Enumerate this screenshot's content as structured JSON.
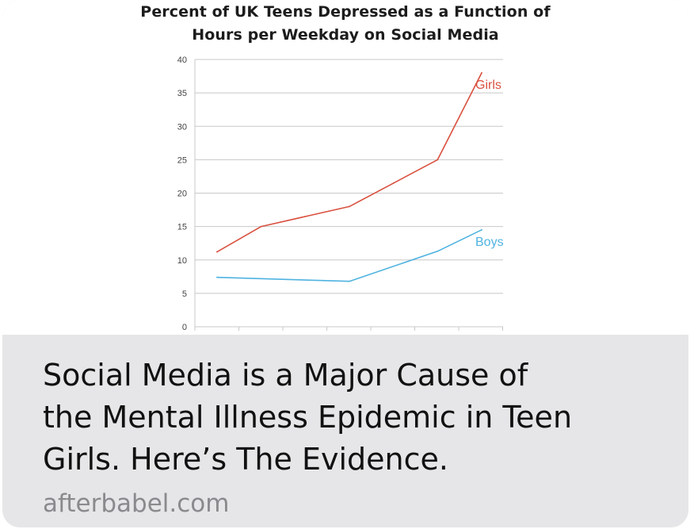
{
  "link_preview": {
    "title_lines": [
      "Social Media is a Major Cause of",
      "the Mental Illness Epidemic in Teen",
      "Girls. Here’s The Evidence."
    ],
    "domain": "afterbabel.com"
  },
  "colors": {
    "girls": "#d9503f",
    "boys": "#4fb3e0",
    "card_background": "#e6e6e8"
  },
  "chart_data": {
    "type": "line",
    "title_lines": [
      "Percent of UK Teens Depressed as a Function of",
      "Hours per Weekday on Social Media"
    ],
    "xlabel": "",
    "ylabel": "",
    "ylim": [
      0,
      40
    ],
    "yticks": [
      "0",
      "5",
      "10",
      "15",
      "20",
      "25",
      "30",
      "35",
      "40"
    ],
    "grid": true,
    "series": [
      {
        "name": "Girls",
        "color": "#d9503f",
        "x": [
          0,
          1,
          2,
          3,
          4,
          5,
          6
        ],
        "values": [
          11.2,
          15.0,
          16.5,
          18.0,
          21.5,
          25.0,
          38.0
        ]
      },
      {
        "name": "Boys",
        "color": "#4fb3e0",
        "x": [
          0,
          3,
          5,
          6
        ],
        "values": [
          7.4,
          6.8,
          11.3,
          14.5
        ]
      }
    ]
  }
}
